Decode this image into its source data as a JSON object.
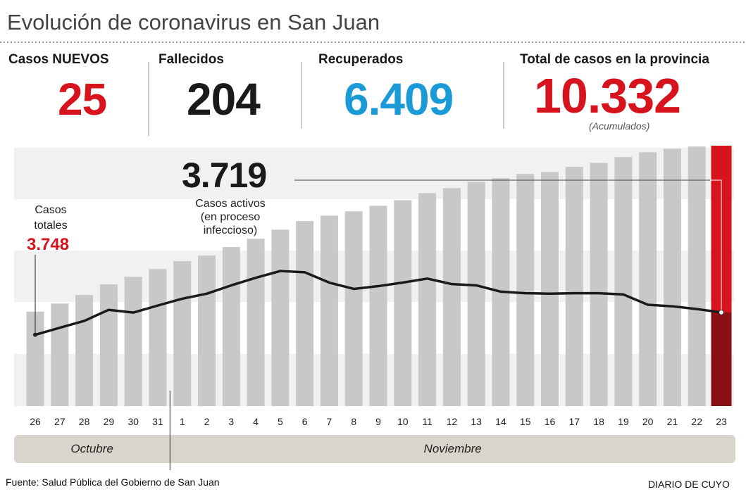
{
  "title": "Evolución de coronavirus en San Juan",
  "stats": [
    {
      "label": "Casos NUEVOS",
      "value": "25"
    },
    {
      "label": "Fallecidos",
      "value": "204"
    },
    {
      "label": "Recuperados",
      "value": "6.409"
    },
    {
      "label": "Total de casos en la provincia",
      "value": "10.332",
      "note": "(Acumulados)"
    }
  ],
  "chart_data": {
    "type": "bar_line",
    "categories": [
      "26",
      "27",
      "28",
      "29",
      "30",
      "31",
      "1",
      "2",
      "3",
      "4",
      "5",
      "6",
      "7",
      "8",
      "9",
      "10",
      "11",
      "12",
      "13",
      "14",
      "15",
      "16",
      "17",
      "18",
      "19",
      "20",
      "21",
      "22",
      "23"
    ],
    "groups": [
      "Octubre",
      "Noviembre"
    ],
    "ylim": [
      0,
      10500
    ],
    "series": [
      {
        "name": "Casos totales",
        "type": "bar",
        "color": "#c8c8c8",
        "highlight_color": "#d7141e",
        "values": [
          3748,
          4070,
          4410,
          4830,
          5130,
          5440,
          5750,
          5970,
          6310,
          6640,
          7000,
          7340,
          7560,
          7730,
          7950,
          8170,
          8450,
          8650,
          8900,
          9040,
          9210,
          9290,
          9490,
          9650,
          9880,
          10070,
          10210,
          10300,
          10332
        ],
        "value_labels": [
          "3.748",
          null,
          null,
          null,
          null,
          null,
          null,
          null,
          null,
          null,
          null,
          null,
          null,
          null,
          null,
          null,
          null,
          null,
          null,
          null,
          null,
          null,
          null,
          null,
          null,
          null,
          null,
          null,
          null
        ]
      },
      {
        "name": "Casos activos",
        "note": "(en proceso infeccioso)",
        "type": "line",
        "color": "#1a1a1a",
        "fill_color": "#8b1014",
        "values": [
          2830,
          3110,
          3380,
          3820,
          3710,
          3990,
          4260,
          4460,
          4790,
          5090,
          5360,
          5310,
          4900,
          4650,
          4760,
          4900,
          5060,
          4840,
          4790,
          4540,
          4480,
          4460,
          4480,
          4480,
          4430,
          4020,
          3960,
          3850,
          3719
        ],
        "value_labels": [
          null,
          null,
          null,
          null,
          null,
          null,
          null,
          null,
          null,
          null,
          null,
          null,
          null,
          null,
          null,
          null,
          null,
          null,
          null,
          null,
          null,
          null,
          null,
          null,
          null,
          null,
          null,
          null,
          "3.719"
        ]
      }
    ],
    "source": "Fuente: Salud Pública del Gobierno de San Juan",
    "credit": "DIARIO DE CUYO"
  }
}
